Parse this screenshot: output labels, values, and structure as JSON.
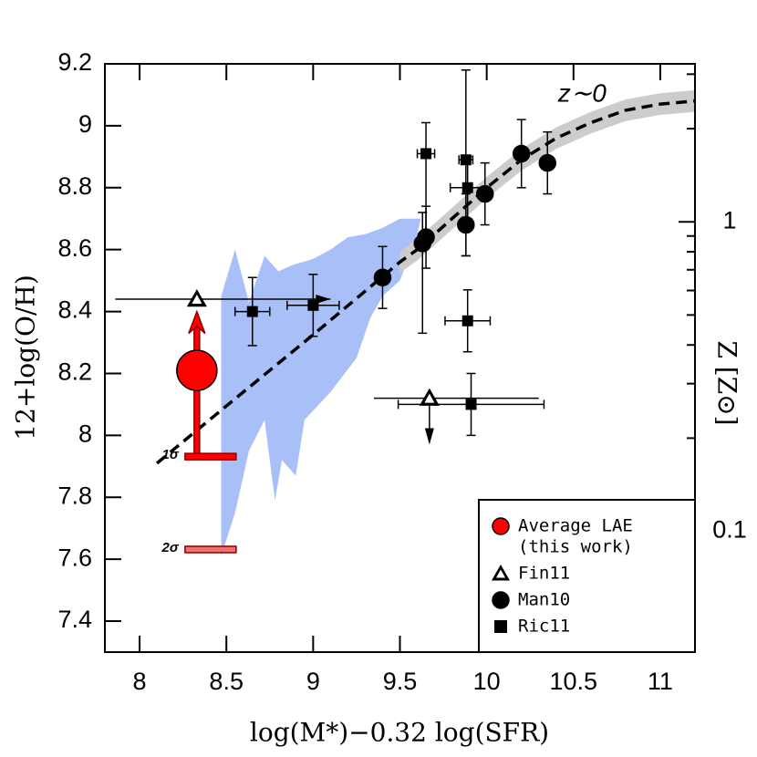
{
  "chart_data": {
    "type": "scatter",
    "xlabel": "log(M*)−0.32 log(SFR)",
    "ylabel": "12+log(O/H)",
    "y2label": "Z [Z⊙]",
    "xlim": [
      7.8,
      11.2
    ],
    "ylim": [
      7.3,
      9.2
    ],
    "xticks": [
      8,
      8.5,
      9,
      9.5,
      10,
      10.5,
      11
    ],
    "yticks": [
      7.4,
      7.6,
      7.8,
      8,
      8.2,
      8.4,
      8.6,
      8.8,
      9,
      9.2
    ],
    "y2lim": [
      0.0407,
      3.24
    ],
    "y2log": true,
    "y2ticks": [
      0.1,
      1
    ],
    "y2minorticks": [
      0.05,
      0.06,
      0.07,
      0.08,
      0.09,
      0.2,
      0.3,
      0.4,
      0.5,
      0.6,
      0.7,
      0.8,
      0.9,
      2,
      3
    ],
    "annotation": {
      "text": "z∼0",
      "x": 10.55,
      "y": 9.1
    },
    "region": {
      "color": "#a9bff7",
      "x": [
        8.47,
        8.47,
        8.55,
        8.63,
        8.72,
        8.8,
        8.88,
        9.0,
        9.1,
        9.2,
        9.3,
        9.4,
        9.5,
        9.62,
        9.6,
        9.5,
        9.4,
        9.33,
        9.25,
        9.1,
        9.0,
        8.95,
        8.9,
        8.82,
        8.78,
        8.72,
        8.63,
        8.55
      ],
      "y": [
        7.61,
        8.45,
        8.6,
        8.43,
        8.58,
        8.53,
        8.55,
        8.57,
        8.6,
        8.64,
        8.65,
        8.67,
        8.7,
        8.7,
        8.65,
        8.5,
        8.45,
        8.38,
        8.25,
        8.14,
        8.08,
        8.05,
        7.87,
        7.92,
        7.79,
        8.05,
        7.95,
        7.75
      ]
    },
    "band": {
      "color": "#cccccc",
      "x": [
        9.5,
        9.6,
        9.8,
        10.0,
        10.2,
        10.4,
        10.6,
        10.8,
        11.0,
        11.2
      ],
      "lower": [
        8.525,
        8.565,
        8.665,
        8.765,
        8.855,
        8.925,
        8.975,
        9.015,
        9.035,
        9.045
      ],
      "upper": [
        8.595,
        8.635,
        8.735,
        8.835,
        8.925,
        8.995,
        9.045,
        9.085,
        9.105,
        9.115
      ]
    },
    "relation": {
      "x": [
        8.1,
        8.5,
        9.0,
        9.5,
        9.6,
        9.8,
        10.0,
        10.2,
        10.4,
        10.6,
        10.8,
        11.0,
        11.2
      ],
      "y": [
        7.91,
        8.095,
        8.325,
        8.56,
        8.6,
        8.7,
        8.8,
        8.89,
        8.96,
        9.01,
        9.05,
        9.07,
        9.08
      ]
    },
    "series": [
      {
        "name": "Average LAE",
        "name_note": "(this work)",
        "marker": "circle",
        "color": "#ff0000",
        "x": [
          8.33
        ],
        "y": [
          8.21
        ],
        "arrow_to": [
          8.4
        ],
        "limits": [
          {
            "label": "1σ",
            "value": 7.93,
            "color": "#ff0000"
          },
          {
            "label": "2σ",
            "value": 7.63,
            "color": "#f07070"
          }
        ]
      },
      {
        "name": "Fin11",
        "marker": "triangle",
        "color": "#ffffff",
        "x": [
          8.33,
          9.67
        ],
        "y": [
          8.44,
          8.12
        ],
        "xmin": [
          7.86,
          9.35
        ],
        "xmax": [
          9.1,
          10.3
        ],
        "arrows": [
          {
            "x": 9.1,
            "y": 8.44
          },
          {
            "x": 9.67,
            "y": 7.97
          }
        ]
      },
      {
        "name": "Man10",
        "marker": "circle",
        "color": "#000000",
        "x": [
          9.4,
          9.63,
          9.65,
          9.88,
          9.99,
          10.2,
          10.35
        ],
        "y": [
          8.51,
          8.62,
          8.64,
          8.68,
          8.78,
          8.91,
          8.88
        ],
        "yerr_low": [
          0.1,
          0.29,
          0.1,
          0.1,
          0.1,
          0.11,
          0.1
        ],
        "yerr_high": [
          0.1,
          0.1,
          0.1,
          0.1,
          0.1,
          0.11,
          0.1
        ]
      },
      {
        "name": "Ric11",
        "marker": "square",
        "color": "#000000",
        "x": [
          8.65,
          9.0,
          9.65,
          9.88,
          9.89,
          9.89,
          9.91
        ],
        "y": [
          8.4,
          8.42,
          8.91,
          8.89,
          8.8,
          8.37,
          8.1
        ],
        "xerr": [
          0.1,
          0.15,
          0.05,
          0.04,
          0.1,
          0.13,
          0.42
        ],
        "yerr_low": [
          0.11,
          0.1,
          0.25,
          0.31,
          0.1,
          0.1,
          0.1
        ],
        "yerr_high": [
          0.11,
          0.1,
          0.1,
          0.29,
          0.1,
          0.1,
          0.1
        ]
      }
    ]
  }
}
